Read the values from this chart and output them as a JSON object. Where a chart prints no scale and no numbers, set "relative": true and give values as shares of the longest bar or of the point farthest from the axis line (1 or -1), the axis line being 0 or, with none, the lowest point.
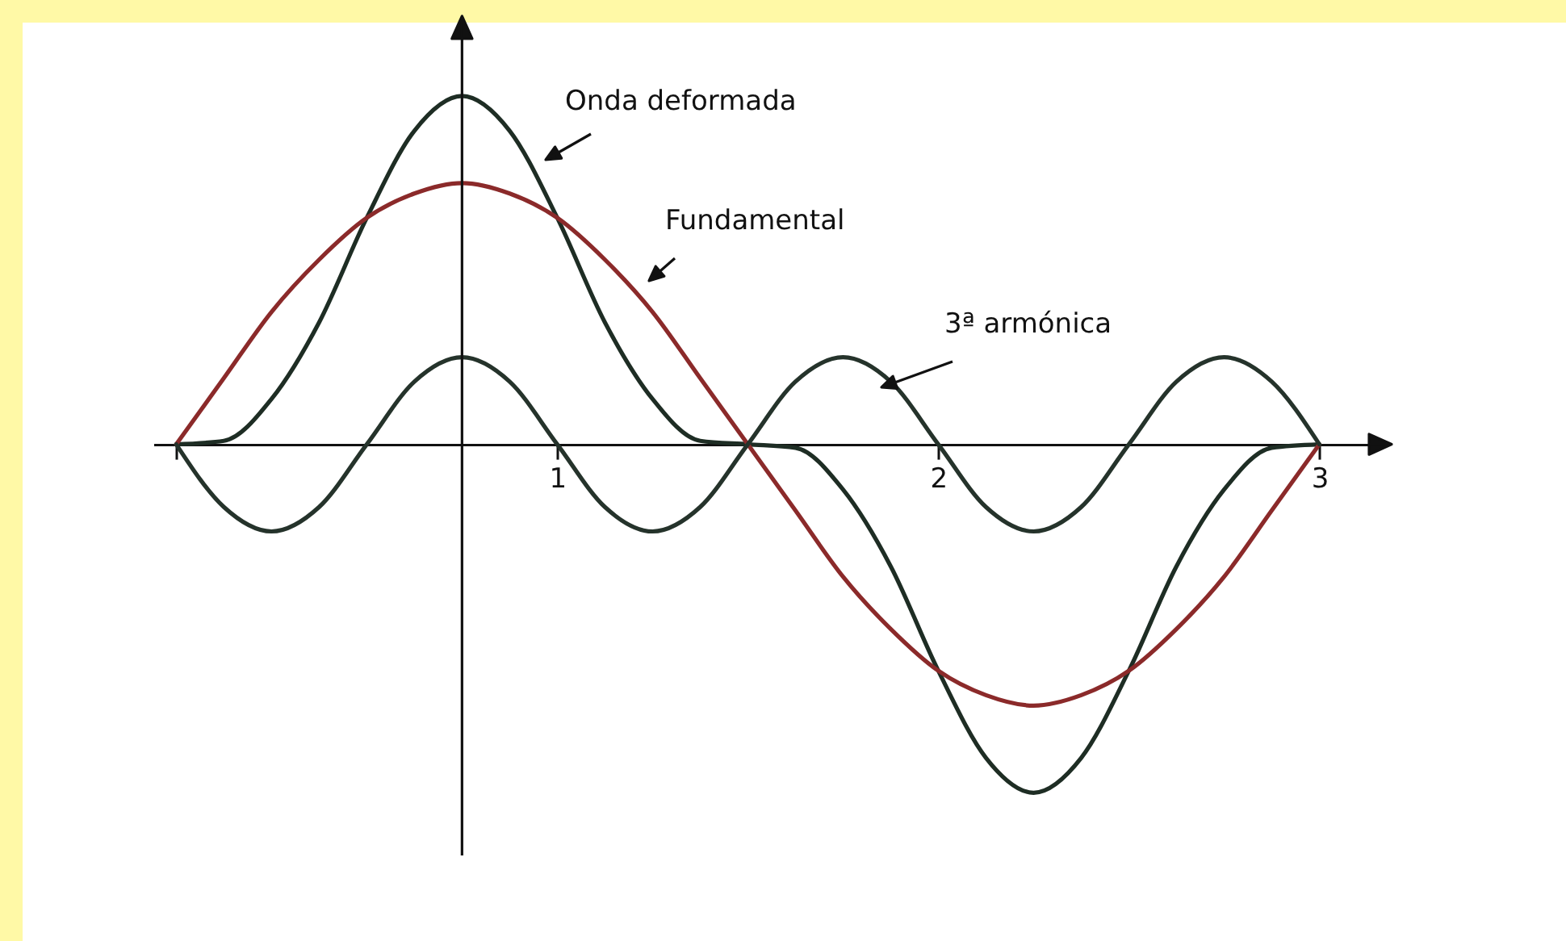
{
  "chart_data": {
    "type": "line",
    "relative": true,
    "x": [
      0,
      0.125,
      0.25,
      0.375,
      0.5,
      0.625,
      0.75,
      0.875,
      1,
      1.125,
      1.25,
      1.375,
      1.5,
      1.625,
      1.75,
      1.875,
      2,
      2.125,
      2.25,
      2.375,
      2.5,
      2.625,
      2.75,
      2.875,
      3
    ],
    "xlim": [
      -0.06,
      3.16
    ],
    "ref_lines": [
      {
        "axis": "x",
        "value": 0.75,
        "color": "#111111"
      }
    ],
    "xticks": [
      {
        "value": 0,
        "label": null
      },
      1,
      2,
      3
    ],
    "series": [
      {
        "name": "Onda deformada",
        "color": "#1e2d24",
        "values": [
          0,
          0.01,
          0.13,
          0.35,
          0.65,
          0.9,
          1,
          0.9,
          0.65,
          0.35,
          0.13,
          0.01,
          0,
          -0.01,
          -0.13,
          -0.35,
          -0.65,
          -0.9,
          -1,
          -0.9,
          -0.65,
          -0.35,
          -0.13,
          -0.01,
          0
        ]
      },
      {
        "name": "Fundamental",
        "color": "#8b2a2a",
        "values": [
          0,
          0.19,
          0.38,
          0.53,
          0.65,
          0.72,
          0.75,
          0.72,
          0.65,
          0.53,
          0.38,
          0.19,
          0,
          -0.19,
          -0.38,
          -0.53,
          -0.65,
          -0.72,
          -0.75,
          -0.72,
          -0.65,
          -0.53,
          -0.38,
          -0.19,
          0
        ]
      },
      {
        "name": "3ª armónica",
        "color": "#25332b",
        "values": [
          0,
          -0.18,
          -0.25,
          -0.18,
          0,
          0.18,
          0.25,
          0.18,
          0,
          -0.18,
          -0.25,
          -0.18,
          0,
          0.18,
          0.25,
          0.18,
          0,
          -0.18,
          -0.25,
          -0.18,
          0,
          0.18,
          0.25,
          0.18,
          0
        ]
      }
    ]
  }
}
